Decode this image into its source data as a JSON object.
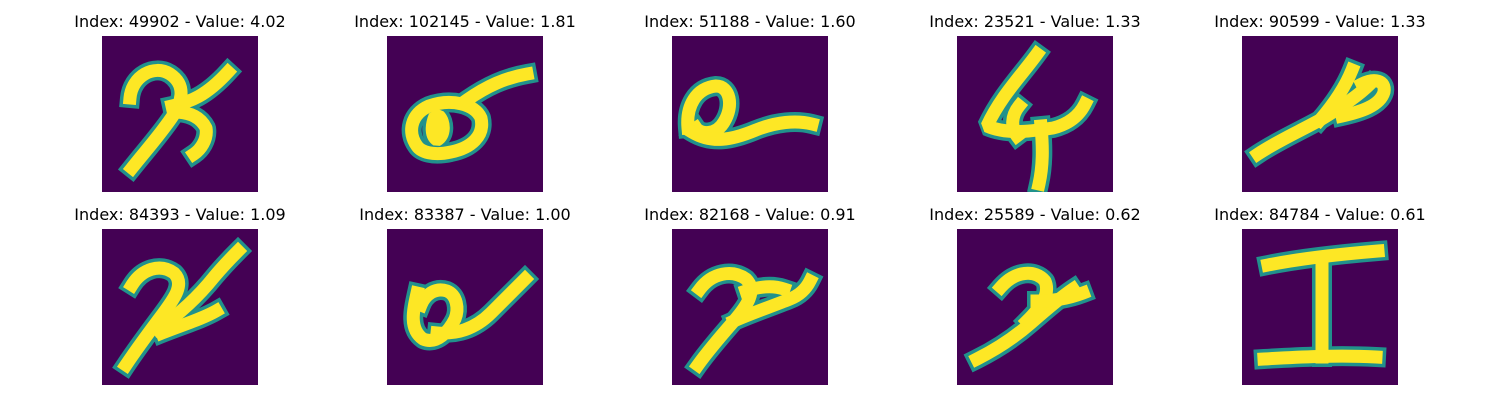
{
  "colors": {
    "background": "#440154",
    "stroke_edge": "#21918c",
    "stroke_core": "#fde725"
  },
  "panels": [
    {
      "title": "Index: 49902 - Value: 4.02",
      "glyph": "handwritten-two-looped-icon"
    },
    {
      "title": "Index: 102145 - Value: 1.81",
      "glyph": "handwritten-loop-with-tail-icon"
    },
    {
      "title": "Index: 51188 - Value: 1.60",
      "glyph": "handwritten-loop-with-tail-icon"
    },
    {
      "title": "Index: 23521 - Value: 1.33",
      "glyph": "handwritten-four-icon"
    },
    {
      "title": "Index: 90599 - Value: 1.33",
      "glyph": "handwritten-slanted-stroke-icon"
    },
    {
      "title": "Index: 84393 - Value: 1.09",
      "glyph": "handwritten-two-looped-icon"
    },
    {
      "title": "Index: 83387 - Value: 1.00",
      "glyph": "handwritten-loop-with-tail-icon"
    },
    {
      "title": "Index: 82168 - Value: 0.91",
      "glyph": "handwritten-two-icon"
    },
    {
      "title": "Index: 25589 - Value: 0.62",
      "glyph": "handwritten-two-icon"
    },
    {
      "title": "Index: 84784 - Value: 0.61",
      "glyph": "handwritten-capital-i-icon"
    }
  ]
}
